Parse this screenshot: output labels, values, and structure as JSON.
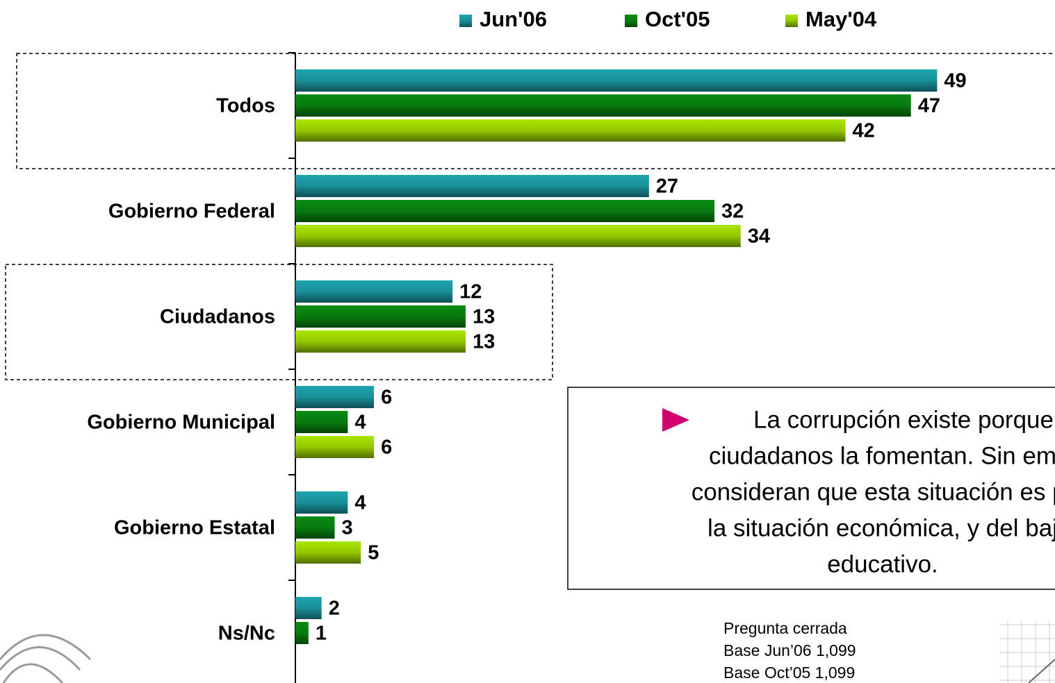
{
  "chart_data": {
    "type": "bar",
    "orientation": "horizontal",
    "categories": [
      "Todos",
      "Gobierno Federal",
      "Ciudadanos",
      "Gobierno Municipal",
      "Gobierno Estatal",
      "Ns/Nc"
    ],
    "series": [
      {
        "name": "Jun'06",
        "color": "#1a8f99",
        "values": [
          49,
          27,
          12,
          6,
          4,
          2
        ]
      },
      {
        "name": "Oct'05",
        "color": "#087a10",
        "values": [
          47,
          32,
          13,
          4,
          3,
          1
        ]
      },
      {
        "name": "May'04",
        "color": "#94c800",
        "values": [
          42,
          34,
          13,
          6,
          5,
          null
        ]
      }
    ],
    "xlim": [
      0,
      58
    ],
    "annotation": [
      "La corrupción existe porque",
      "ciudadanos la fomentan. Sin em",
      "consideran que esta situación es pr",
      "la situación económica, y del baj",
      "educativo."
    ],
    "footnote": [
      "Pregunta cerrada",
      "Base Jun’06 1,099",
      "Base Oct’05 1,099"
    ]
  }
}
